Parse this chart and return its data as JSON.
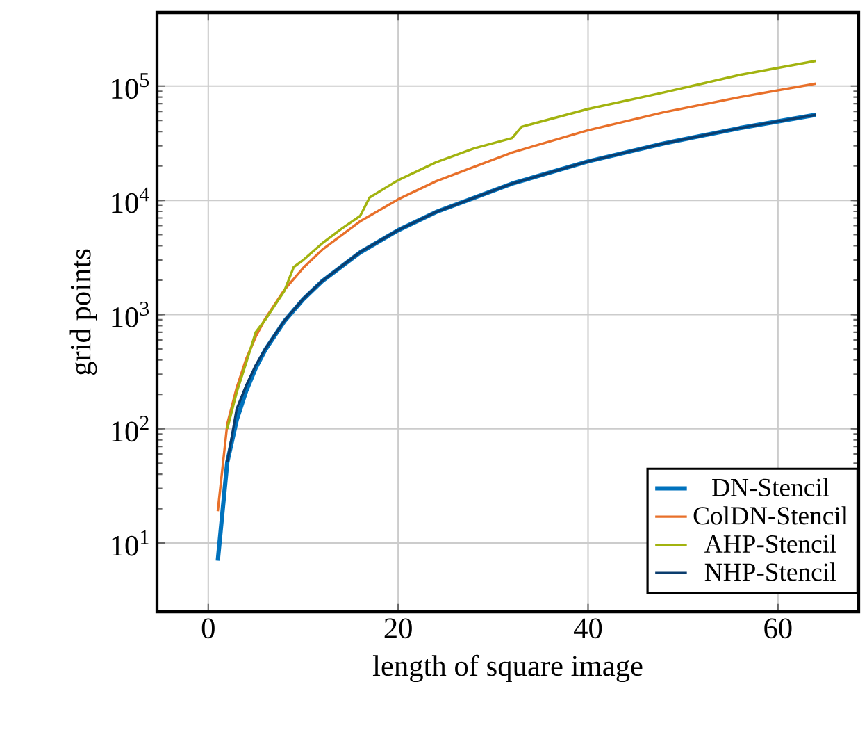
{
  "chart_data": {
    "type": "line",
    "xlabel": "length of square image",
    "ylabel": "grid points",
    "log": "y",
    "xlim": [
      -5.4,
      68.5
    ],
    "ylim": [
      2.5,
      440000
    ],
    "xticks": [
      0,
      20,
      40,
      60
    ],
    "yticks": [
      {
        "value": 10,
        "label": "10$^{1}$"
      },
      {
        "value": 100,
        "label": "10$^{2}$"
      },
      {
        "value": 1000,
        "label": "10$^{3}$"
      },
      {
        "value": 10000,
        "label": "10$^{4}$"
      },
      {
        "value": 100000,
        "label": "10$^{5}$"
      }
    ],
    "grid": true,
    "legend": "bottom right",
    "marker": "none",
    "line_style": "solid",
    "series": [
      {
        "name": "DN-Stencil",
        "color": "#0072bd",
        "x": [
          1,
          2,
          3,
          4,
          5,
          6,
          8,
          10,
          12,
          16,
          20,
          24,
          32,
          40,
          48,
          56,
          64
        ],
        "values": [
          7,
          51,
          120,
          215,
          340,
          490,
          870,
          1360,
          1960,
          3500,
          5470,
          7900,
          14000,
          21900,
          31500,
          42900,
          56000
        ]
      },
      {
        "name": "ColDN-Stencil",
        "color": "#e8702a",
        "x": [
          1,
          2,
          3,
          4,
          5,
          6,
          8,
          10,
          12,
          16,
          20,
          24,
          32,
          40,
          48,
          56,
          64
        ],
        "values": [
          19,
          110,
          230,
          410,
          640,
          920,
          1640,
          2560,
          3690,
          6550,
          10200,
          14700,
          26200,
          41000,
          59000,
          80000,
          105000
        ]
      },
      {
        "name": "AHP-Stencil",
        "color": "#a2b30f",
        "x": [
          2,
          3,
          4,
          5,
          6,
          7,
          8,
          9,
          10,
          12,
          14,
          16,
          17,
          20,
          24,
          28,
          32,
          33,
          40,
          48,
          56,
          64
        ],
        "values": [
          100,
          210,
          380,
          700,
          900,
          1200,
          1600,
          2600,
          3000,
          4200,
          5600,
          7300,
          10600,
          15000,
          21500,
          28500,
          35000,
          44000,
          63000,
          88000,
          125000,
          166000
        ]
      },
      {
        "name": "NHP-Stencil",
        "color": "#0b3d6e",
        "x": [
          2,
          3,
          4,
          5,
          6,
          8,
          10,
          12,
          16,
          20,
          24,
          32,
          40,
          48,
          56,
          64
        ],
        "values": [
          51,
          150,
          240,
          360,
          500,
          880,
          1370,
          1970,
          3520,
          5480,
          7900,
          14000,
          21900,
          31500,
          42900,
          56000
        ]
      }
    ]
  }
}
